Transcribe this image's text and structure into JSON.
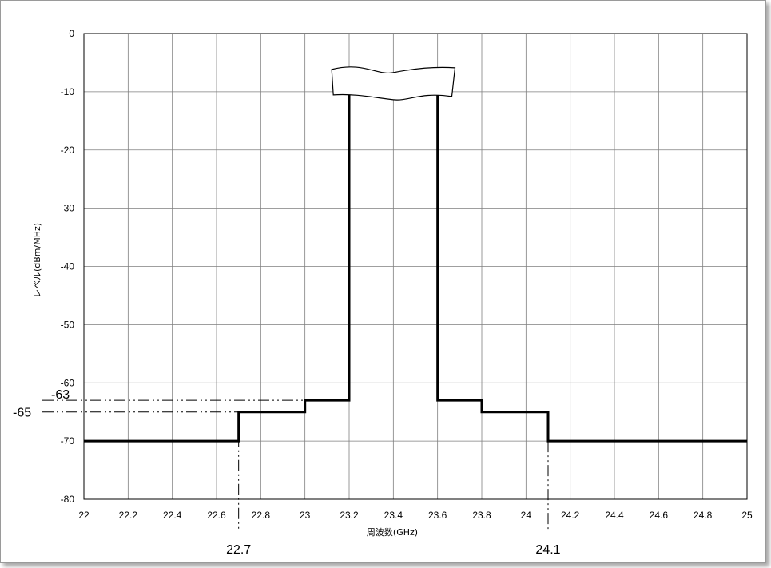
{
  "chart_data": {
    "type": "line",
    "title": "",
    "xlabel": "周波数(GHz)",
    "ylabel": "レベル(dBm/MHz)",
    "xlim": [
      22,
      25
    ],
    "ylim": [
      -80,
      0
    ],
    "x_ticks": [
      "22",
      "22.2",
      "22.4",
      "22.6",
      "22.8",
      "23",
      "23.2",
      "23.4",
      "23.6",
      "23.8",
      "24",
      "24.2",
      "24.4",
      "24.6",
      "24.8",
      "25"
    ],
    "y_ticks": [
      "0",
      "-10",
      "-20",
      "-30",
      "-40",
      "-50",
      "-60",
      "-70",
      "-80"
    ],
    "grid": true,
    "series": [
      {
        "x": [
          22,
          22.7,
          22.7,
          23,
          23,
          23.2,
          23.2,
          23.6,
          23.6,
          23.8,
          23.8,
          24.1,
          24.1,
          25
        ],
        "y": [
          -70,
          -70,
          -65,
          -65,
          -63,
          -63,
          -10,
          -10,
          -63,
          -63,
          -65,
          -65,
          -70,
          -70
        ]
      }
    ],
    "break_symbol": {
      "x": [
        23.15,
        23.65
      ],
      "y": -10
    },
    "annotations": {
      "y_marks": [
        {
          "value": -63,
          "label": "-63",
          "x_end": 23
        },
        {
          "value": -65,
          "label": "-65",
          "x_end": 22.7
        }
      ],
      "x_marks": [
        {
          "value": 22.7,
          "label": "22.7",
          "y_start": -65
        },
        {
          "value": 24.1,
          "label": "24.1",
          "y_start": -70
        }
      ]
    }
  }
}
